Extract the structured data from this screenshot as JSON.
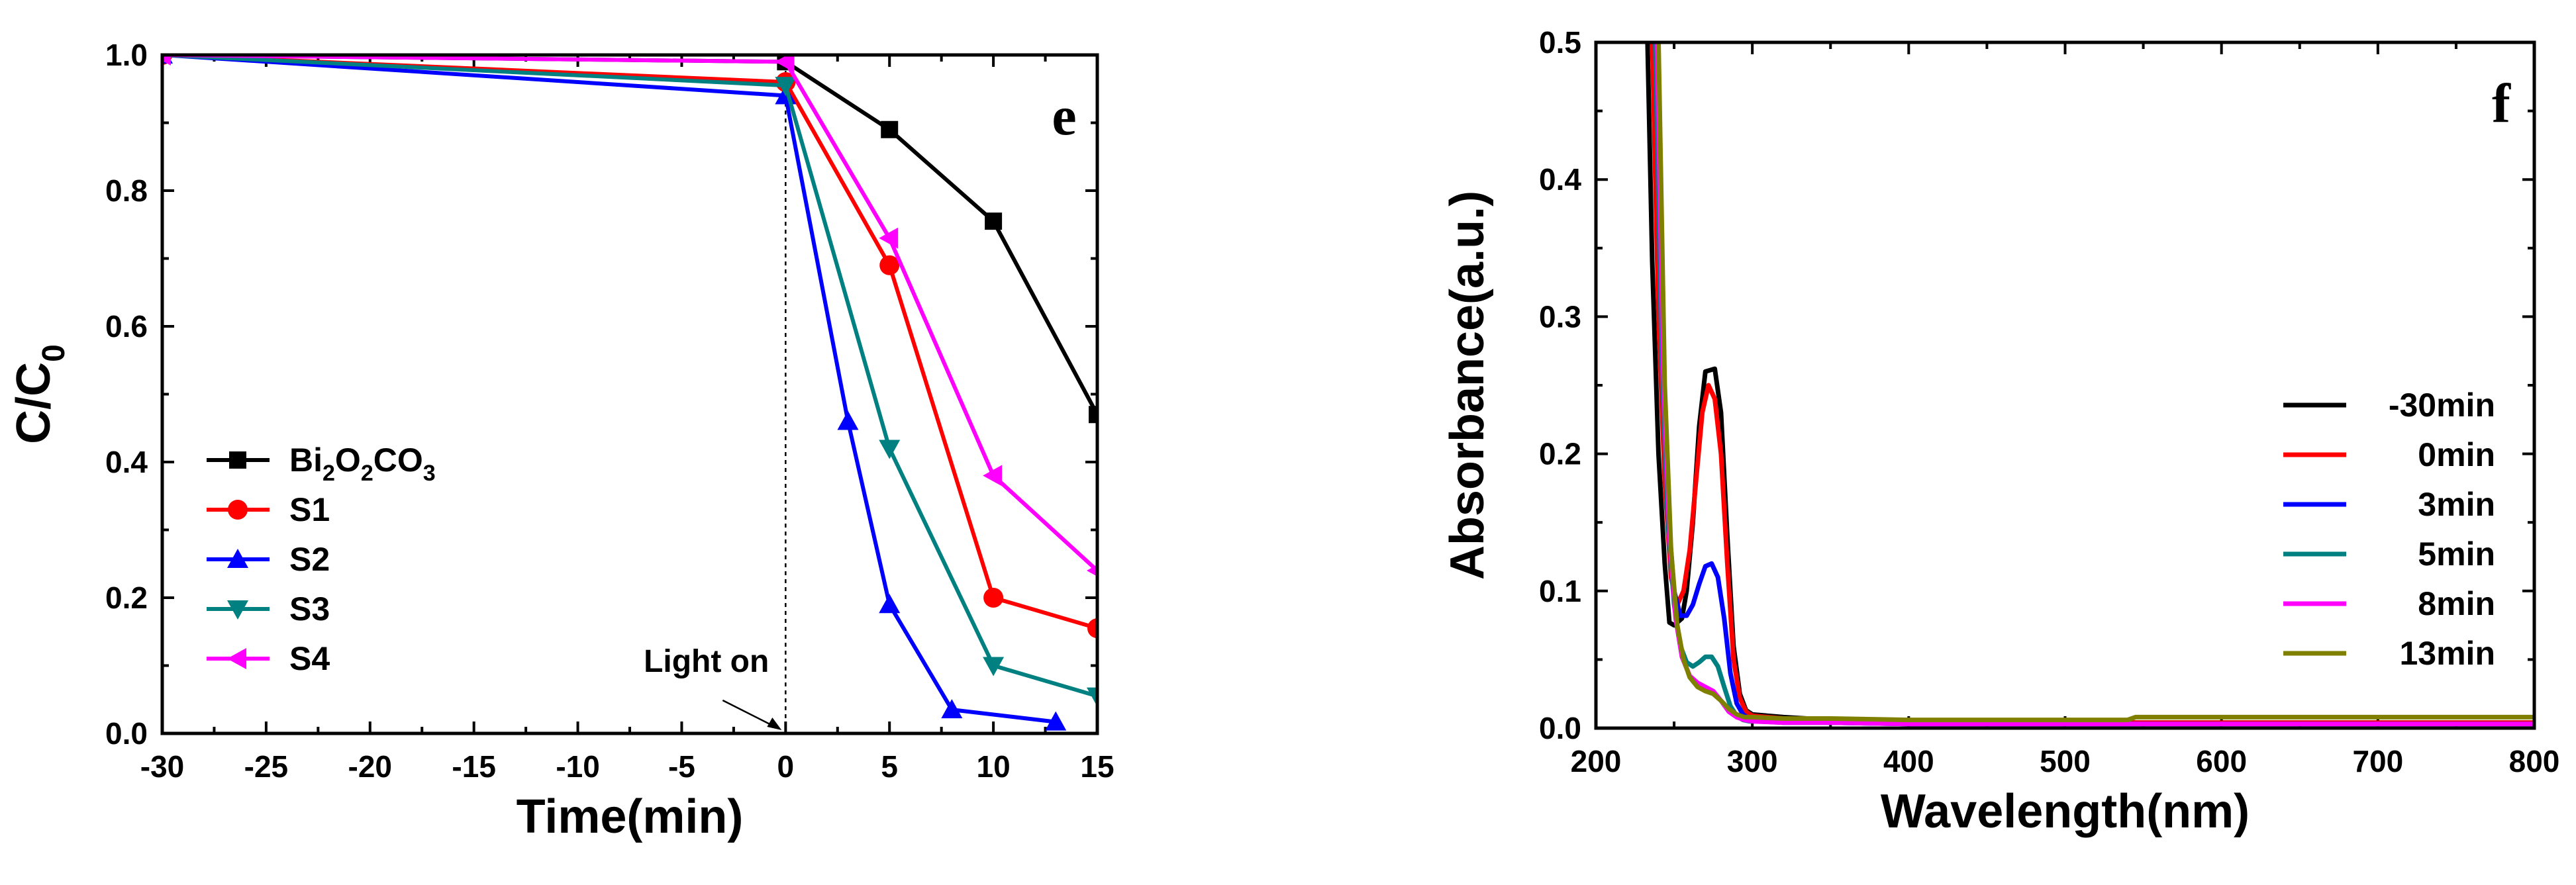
{
  "chart_data": [
    {
      "panel_label": "e",
      "type": "line",
      "xlabel": "Time(min)",
      "ylabel": {
        "main": "C/C",
        "sub": "0"
      },
      "xlim": [
        -30,
        15
      ],
      "ylim": [
        0,
        1.0
      ],
      "xticks": [
        -30,
        -25,
        -20,
        -15,
        -10,
        -5,
        0,
        5,
        10,
        15
      ],
      "yticks": [
        0.0,
        0.2,
        0.4,
        0.6,
        0.8,
        1.0
      ],
      "xtick_labels": [
        "-30",
        "-25",
        "-20",
        "-15",
        "-10",
        "-5",
        "0",
        "5",
        "10",
        "15"
      ],
      "ytick_labels": [
        "0.0",
        "0.2",
        "0.4",
        "0.6",
        "0.8",
        "1.0"
      ],
      "annotation": {
        "text": "Light on",
        "x": 0
      },
      "legend_position": "center-left",
      "series": [
        {
          "name": "Bi2O2CO3",
          "name_parts": [
            "Bi",
            "2",
            "O",
            "2",
            "CO",
            "3"
          ],
          "color": "#000000",
          "marker": "square",
          "x": [
            -30,
            0,
            5,
            10,
            15
          ],
          "y": [
            1.0,
            0.99,
            0.89,
            0.755,
            0.47
          ]
        },
        {
          "name": "S1",
          "color": "#ff0000",
          "marker": "circle",
          "x": [
            -30,
            0,
            5,
            10,
            15
          ],
          "y": [
            1.0,
            0.96,
            0.69,
            0.2,
            0.155
          ]
        },
        {
          "name": "S2",
          "color": "#0000ff",
          "marker": "triangle-up",
          "x": [
            -30,
            0,
            3,
            5,
            8,
            13
          ],
          "y": [
            1.0,
            0.94,
            0.46,
            0.19,
            0.035,
            0.017
          ]
        },
        {
          "name": "S3",
          "color": "#008080",
          "marker": "triangle-down",
          "x": [
            -30,
            0,
            5,
            10,
            15
          ],
          "y": [
            1.0,
            0.955,
            0.42,
            0.1,
            0.055
          ]
        },
        {
          "name": "S4",
          "color": "#ff00ff",
          "marker": "triangle-left",
          "x": [
            -30,
            0,
            5,
            10,
            15
          ],
          "y": [
            1.0,
            0.99,
            0.73,
            0.38,
            0.24
          ]
        }
      ]
    },
    {
      "panel_label": "f",
      "type": "line",
      "xlabel": "Wavelength(nm)",
      "ylabel": "Absorbance(a.u.)",
      "xlim": [
        200,
        800
      ],
      "ylim": [
        0,
        0.5
      ],
      "xticks": [
        200,
        300,
        400,
        500,
        600,
        700,
        800
      ],
      "yticks": [
        0.0,
        0.1,
        0.2,
        0.3,
        0.4,
        0.5
      ],
      "xtick_labels": [
        "200",
        "300",
        "400",
        "500",
        "600",
        "700",
        "800"
      ],
      "ytick_labels": [
        "0.0",
        "0.1",
        "0.2",
        "0.3",
        "0.4",
        "0.5"
      ],
      "legend_position": "right",
      "series": [
        {
          "name": "-30min",
          "color": "#000000",
          "x": [
            233,
            236,
            240,
            244,
            247,
            250,
            255,
            258,
            262,
            266,
            270,
            276,
            280,
            284,
            288,
            292,
            296,
            300,
            320,
            350,
            400,
            450,
            500,
            550,
            600,
            650,
            700,
            750,
            800
          ],
          "y": [
            0.5,
            0.34,
            0.2,
            0.12,
            0.077,
            0.075,
            0.08,
            0.1,
            0.15,
            0.22,
            0.26,
            0.262,
            0.23,
            0.14,
            0.06,
            0.025,
            0.013,
            0.01,
            0.008,
            0.006,
            0.005,
            0.004,
            0.004,
            0.004,
            0.004,
            0.004,
            0.004,
            0.004,
            0.004
          ]
        },
        {
          "name": "0min",
          "color": "#ff0000",
          "x": [
            236,
            240,
            244,
            248,
            252,
            256,
            260,
            264,
            268,
            272,
            276,
            280,
            284,
            288,
            292,
            296,
            300,
            320,
            350,
            400,
            500,
            600,
            700,
            800
          ],
          "y": [
            0.5,
            0.3,
            0.18,
            0.11,
            0.09,
            0.1,
            0.13,
            0.18,
            0.23,
            0.25,
            0.24,
            0.2,
            0.12,
            0.05,
            0.022,
            0.012,
            0.009,
            0.007,
            0.005,
            0.004,
            0.004,
            0.004,
            0.004,
            0.004
          ]
        },
        {
          "name": "3min",
          "color": "#0000ff",
          "x": [
            238,
            242,
            246,
            250,
            254,
            258,
            262,
            266,
            270,
            274,
            278,
            282,
            286,
            290,
            294,
            298,
            302,
            320,
            350,
            400,
            500,
            600,
            700,
            800
          ],
          "y": [
            0.5,
            0.28,
            0.16,
            0.1,
            0.082,
            0.082,
            0.09,
            0.105,
            0.118,
            0.12,
            0.11,
            0.08,
            0.04,
            0.018,
            0.01,
            0.007,
            0.006,
            0.005,
            0.004,
            0.003,
            0.003,
            0.003,
            0.003,
            0.003
          ]
        },
        {
          "name": "5min",
          "color": "#008080",
          "x": [
            238,
            242,
            246,
            250,
            254,
            258,
            262,
            266,
            270,
            274,
            278,
            282,
            286,
            290,
            294,
            298,
            302,
            320,
            350,
            400,
            500,
            600,
            700,
            800
          ],
          "y": [
            0.5,
            0.27,
            0.15,
            0.09,
            0.06,
            0.048,
            0.045,
            0.048,
            0.052,
            0.052,
            0.045,
            0.03,
            0.016,
            0.009,
            0.006,
            0.005,
            0.005,
            0.004,
            0.004,
            0.003,
            0.003,
            0.003,
            0.003,
            0.003
          ]
        },
        {
          "name": "8min",
          "color": "#ff00ff",
          "x": [
            239,
            243,
            247,
            251,
            255,
            260,
            265,
            270,
            275,
            280,
            285,
            290,
            295,
            300,
            320,
            350,
            400,
            500,
            600,
            700,
            800
          ],
          "y": [
            0.5,
            0.26,
            0.14,
            0.08,
            0.052,
            0.038,
            0.033,
            0.03,
            0.027,
            0.02,
            0.012,
            0.008,
            0.006,
            0.005,
            0.004,
            0.004,
            0.003,
            0.003,
            0.003,
            0.003,
            0.003
          ]
        },
        {
          "name": "13min",
          "color": "#808000",
          "x": [
            240,
            244,
            248,
            252,
            256,
            260,
            265,
            270,
            275,
            280,
            285,
            290,
            295,
            300,
            320,
            350,
            400,
            450,
            500,
            540,
            545,
            600,
            700,
            800
          ],
          "y": [
            0.5,
            0.25,
            0.13,
            0.075,
            0.05,
            0.037,
            0.03,
            0.027,
            0.025,
            0.02,
            0.014,
            0.01,
            0.008,
            0.008,
            0.007,
            0.007,
            0.006,
            0.006,
            0.006,
            0.006,
            0.008,
            0.008,
            0.008,
            0.008
          ]
        }
      ]
    }
  ]
}
